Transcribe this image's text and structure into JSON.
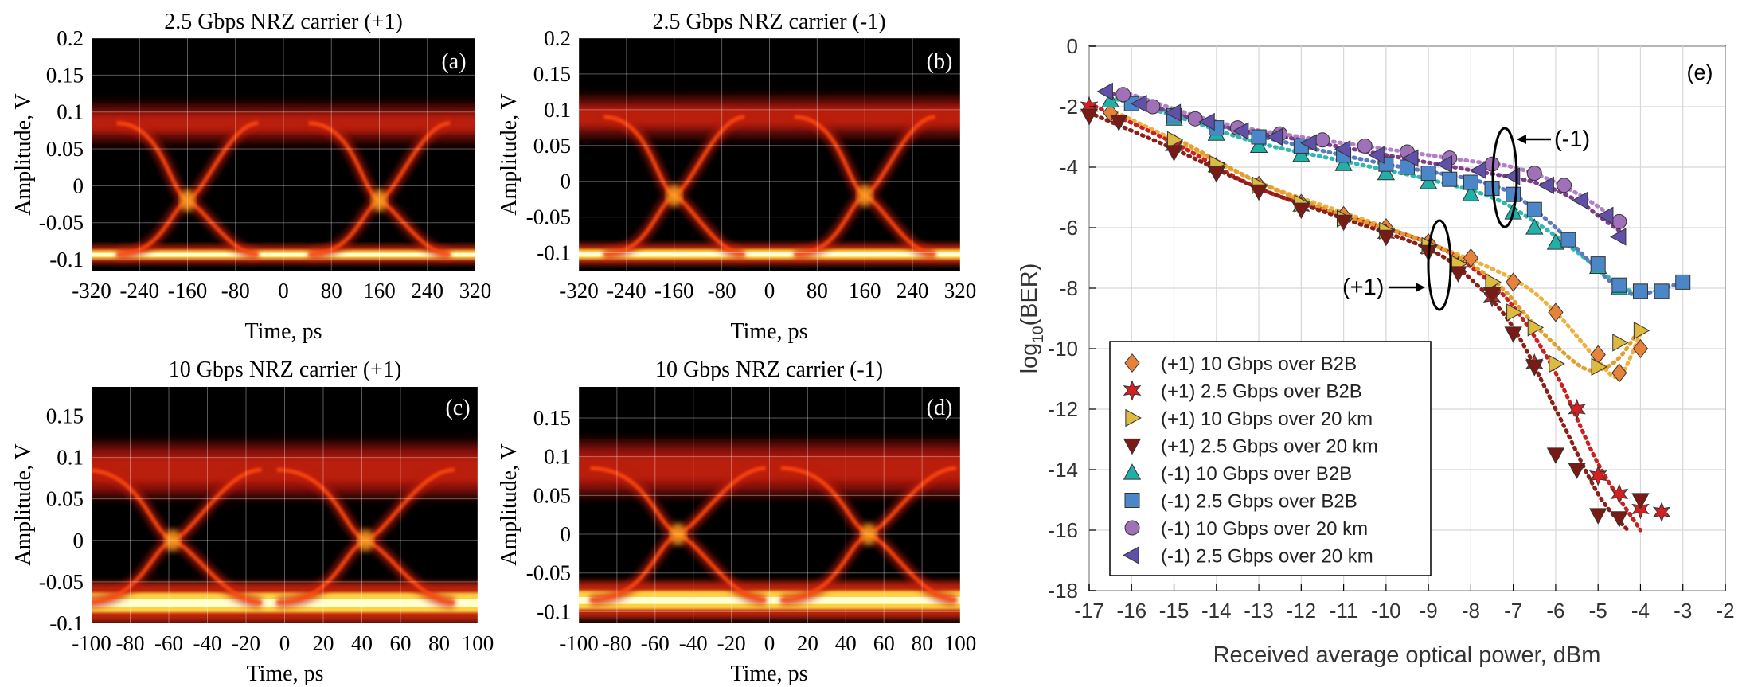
{
  "chart_data": [
    {
      "panel": "(a)",
      "type": "heatmap",
      "title": "2.5 Gbps NRZ carrier (+1)",
      "xlabel": "Time, ps",
      "ylabel": "Amplitude, V",
      "xlim": [
        -320,
        320
      ],
      "ylim": [
        -0.115,
        0.2
      ],
      "xticks": [
        -320,
        -240,
        -160,
        -80,
        0,
        80,
        160,
        240,
        320
      ],
      "xtick_labels": [
        "-320",
        "-240",
        "-160",
        "-80",
        "0",
        "80",
        "160",
        "240",
        "320"
      ],
      "yticks": [
        -0.1,
        -0.05,
        0,
        0.05,
        0.1,
        0.15,
        0.2
      ],
      "ytick_labels": [
        "-0.1",
        "-0.05",
        "0",
        "0.05",
        "0.1",
        "0.15",
        "0.2"
      ],
      "eye": {
        "high": 0.085,
        "low": -0.093,
        "cross_x": [
          -160,
          160
        ],
        "cross_y": -0.02,
        "span": 118,
        "high_w": 0.022,
        "low_w": 0.006
      }
    },
    {
      "panel": "(b)",
      "type": "heatmap",
      "title": "2.5 Gbps NRZ carrier (-1)",
      "xlabel": "Time, ps",
      "ylabel": "Amplitude, V",
      "xlim": [
        -320,
        320
      ],
      "ylim": [
        -0.125,
        0.2
      ],
      "xticks": [
        -320,
        -240,
        -160,
        -80,
        0,
        80,
        160,
        240,
        320
      ],
      "xtick_labels": [
        "-320",
        "-240",
        "-160",
        "-80",
        "0",
        "80",
        "160",
        "240",
        "320"
      ],
      "yticks": [
        -0.1,
        -0.05,
        0,
        0.05,
        0.1,
        0.15,
        0.2
      ],
      "ytick_labels": [
        "-0.1",
        "-0.05",
        "0",
        "0.05",
        "0.1",
        "0.15",
        "0.2"
      ],
      "eye": {
        "high": 0.09,
        "low": -0.102,
        "cross_x": [
          -160,
          160
        ],
        "cross_y": -0.02,
        "span": 118,
        "high_w": 0.025,
        "low_w": 0.007
      }
    },
    {
      "panel": "(c)",
      "type": "heatmap",
      "title": "10 Gbps NRZ carrier (+1)",
      "xlabel": "Time, ps",
      "ylabel": "Amplitude, V",
      "xlim": [
        -100,
        100
      ],
      "ylim": [
        -0.1,
        0.185
      ],
      "xticks": [
        -100,
        -80,
        -60,
        -40,
        -20,
        0,
        20,
        40,
        60,
        80,
        100
      ],
      "xtick_labels": [
        "-100",
        "-80",
        "-60",
        "-40",
        "-20",
        "0",
        "20",
        "40",
        "60",
        "80",
        "100"
      ],
      "yticks": [
        -0.1,
        -0.05,
        0,
        0.05,
        0.1,
        0.15
      ],
      "ytick_labels": [
        "-0.1",
        "-0.05",
        "0",
        "0.05",
        "0.1",
        "0.15"
      ],
      "eye": {
        "high": 0.085,
        "low": -0.075,
        "cross_x": [
          -58,
          42
        ],
        "cross_y": 0.0,
        "span": 46,
        "high_w": 0.03,
        "low_w": 0.012
      }
    },
    {
      "panel": "(d)",
      "type": "heatmap",
      "title": "10 Gbps NRZ carrier (-1)",
      "xlabel": "Time, ps",
      "ylabel": "Amplitude, V",
      "xlim": [
        -100,
        100
      ],
      "ylim": [
        -0.115,
        0.19
      ],
      "xticks": [
        -100,
        -80,
        -60,
        -40,
        -20,
        0,
        20,
        40,
        60,
        80,
        100
      ],
      "xtick_labels": [
        "-100",
        "-80",
        "-60",
        "-40",
        "-20",
        "0",
        "20",
        "40",
        "60",
        "80",
        "100"
      ],
      "yticks": [
        -0.1,
        -0.05,
        0,
        0.05,
        0.1,
        0.15
      ],
      "ytick_labels": [
        "-0.1",
        "-0.05",
        "0",
        "0.05",
        "0.1",
        "0.15"
      ],
      "eye": {
        "high": 0.085,
        "low": -0.085,
        "cross_x": [
          -48,
          52
        ],
        "cross_y": 0.0,
        "span": 46,
        "high_w": 0.032,
        "low_w": 0.012
      }
    },
    {
      "panel": "(e)",
      "type": "scatter",
      "xlabel": "Received average optical power, dBm",
      "ylabel_base": "log",
      "ylabel_sub": "10",
      "ylabel_rest": "(BER)",
      "xlim": [
        -17,
        -2
      ],
      "ylim": [
        -18,
        0
      ],
      "xticks": [
        -17,
        -16,
        -15,
        -14,
        -13,
        -12,
        -11,
        -10,
        -9,
        -8,
        -7,
        -6,
        -5,
        -4,
        -3,
        -2
      ],
      "xtick_labels": [
        "-17",
        "-16",
        "-15",
        "-14",
        "-13",
        "-12",
        "-11",
        "-10",
        "-9",
        "-8",
        "-7",
        "-6",
        "-5",
        "-4",
        "-3",
        "-2"
      ],
      "yticks": [
        0,
        -2,
        -4,
        -6,
        -8,
        -10,
        -12,
        -14,
        -16,
        -18
      ],
      "ytick_labels": [
        "0",
        "-2",
        "-4",
        "-6",
        "-8",
        "-10",
        "-12",
        "-14",
        "-16",
        "-18"
      ],
      "grid": true,
      "legend_position": "bottom-left",
      "annotations": [
        {
          "text": "(-1)",
          "x": -6.0,
          "y": -3.1
        },
        {
          "text": "(+1)",
          "x": -9.8,
          "y": -8.0
        }
      ],
      "series": [
        {
          "name": "(+1) 10 Gbps over B2B",
          "marker": "diamond",
          "color": "#E8823A",
          "x": [
            -16.5,
            -15,
            -14,
            -13,
            -12,
            -11,
            -10,
            -9,
            -8,
            -7,
            -6,
            -5,
            -4.5,
            -4
          ],
          "y": [
            -2.2,
            -3.2,
            -4.0,
            -4.6,
            -5.2,
            -5.6,
            -6.0,
            -6.5,
            -7.0,
            -7.8,
            -8.8,
            -10.2,
            -10.8,
            -10.0
          ],
          "fit": {
            "color": "#F0B040",
            "x": [
              -16.5,
              -15,
              -13,
              -11,
              -9,
              -7,
              -6,
              -5,
              -4.5,
              -4
            ],
            "y": [
              -2.1,
              -3.1,
              -4.5,
              -5.5,
              -6.5,
              -7.7,
              -8.8,
              -10.4,
              -10.9,
              -9.5
            ]
          }
        },
        {
          "name": "(+1) 2.5 Gbps over B2B",
          "marker": "star",
          "color": "#D42020",
          "x": [
            -17,
            -15,
            -14,
            -12,
            -10,
            -9,
            -8.3,
            -7.5,
            -6.5,
            -5.5,
            -5,
            -4.5,
            -4,
            -3.5
          ],
          "y": [
            -2.0,
            -3.3,
            -4.0,
            -5.3,
            -6.2,
            -6.7,
            -7.3,
            -8.3,
            -10.5,
            -12.0,
            -14.2,
            -14.8,
            -15.3,
            -15.4
          ],
          "fit": {
            "color": "#CC2020",
            "x": [
              -17,
              -15,
              -13,
              -11,
              -9,
              -8,
              -7,
              -6,
              -5,
              -4
            ],
            "y": [
              -1.9,
              -3.2,
              -4.7,
              -5.6,
              -6.5,
              -7.3,
              -8.6,
              -10.8,
              -13.8,
              -16.0
            ]
          }
        },
        {
          "name": "(+1) 10 Gbps over 20 km",
          "marker": "triangle-right",
          "color": "#DDBB40",
          "x": [
            -15,
            -14,
            -13,
            -12,
            -11,
            -10,
            -9,
            -8.3,
            -7.5,
            -7,
            -6.5,
            -6,
            -5,
            -4.5,
            -4
          ],
          "y": [
            -3.1,
            -3.9,
            -4.6,
            -5.2,
            -5.7,
            -6.1,
            -6.6,
            -7.2,
            -7.8,
            -8.8,
            -9.3,
            -10.5,
            -10.6,
            -9.8,
            -9.4
          ],
          "fit": {
            "color": "#E0A030",
            "x": [
              -15,
              -13,
              -11,
              -9,
              -7.5,
              -6.5,
              -5.5,
              -5,
              -4.5,
              -4
            ],
            "y": [
              -3.0,
              -4.5,
              -5.6,
              -6.5,
              -7.7,
              -9.2,
              -10.5,
              -10.7,
              -10.3,
              -9.3
            ]
          }
        },
        {
          "name": "(+1) 2.5 Gbps over 20 km",
          "marker": "triangle-down",
          "color": "#7A1A14",
          "x": [
            -17,
            -16.3,
            -15,
            -14,
            -13,
            -12,
            -11,
            -10,
            -9,
            -8.3,
            -7.5,
            -7,
            -6.5,
            -6,
            -5.5,
            -5,
            -4.5,
            -4
          ],
          "y": [
            -2.3,
            -2.5,
            -3.5,
            -4.2,
            -4.8,
            -5.4,
            -5.8,
            -6.3,
            -6.8,
            -7.5,
            -8.2,
            -9.5,
            -10.6,
            -13.5,
            -14.0,
            -15.5,
            -15.6,
            -15.0
          ],
          "fit": {
            "color": "#8A2018",
            "x": [
              -17,
              -15,
              -13,
              -11,
              -9,
              -8,
              -7,
              -6,
              -5,
              -4.3
            ],
            "y": [
              -2.2,
              -3.4,
              -4.7,
              -5.7,
              -6.7,
              -7.7,
              -9.3,
              -12.0,
              -14.8,
              -16.0
            ]
          }
        },
        {
          "name": "(-1) 10 Gbps over B2B",
          "marker": "triangle-up",
          "color": "#20B0A8",
          "x": [
            -16.5,
            -15,
            -14,
            -13,
            -12,
            -11,
            -10,
            -9,
            -8,
            -7,
            -6.5,
            -6,
            -5,
            -4.5
          ],
          "y": [
            -1.8,
            -2.4,
            -2.9,
            -3.3,
            -3.6,
            -3.9,
            -4.2,
            -4.5,
            -4.9,
            -5.5,
            -6.0,
            -6.5,
            -7.3,
            -8.0
          ],
          "fit": {
            "color": "#30B8B0",
            "x": [
              -16.5,
              -15,
              -13,
              -11,
              -9,
              -7.5,
              -6.5,
              -5.5,
              -4.5,
              -4
            ],
            "y": [
              -1.7,
              -2.3,
              -3.2,
              -3.8,
              -4.4,
              -5.0,
              -5.8,
              -6.8,
              -7.9,
              -8.2
            ]
          }
        },
        {
          "name": "(-1) 2.5 Gbps over B2B",
          "marker": "square",
          "color": "#4A86C8",
          "x": [
            -16,
            -15,
            -14,
            -13,
            -12,
            -11,
            -10,
            -9.5,
            -9,
            -8.5,
            -8,
            -7.5,
            -7,
            -6.5,
            -5.7,
            -5,
            -4.5,
            -4,
            -3.5,
            -3
          ],
          "y": [
            -1.9,
            -2.3,
            -2.7,
            -3.0,
            -3.3,
            -3.6,
            -3.9,
            -4.0,
            -4.2,
            -4.4,
            -4.5,
            -4.7,
            -4.9,
            -5.4,
            -6.4,
            -7.2,
            -7.9,
            -8.1,
            -8.1,
            -7.8
          ],
          "fit": {
            "color": "#5A7AC0",
            "x": [
              -16,
              -14,
              -12,
              -10,
              -8,
              -7,
              -6,
              -5,
              -4.5,
              -4,
              -3
            ],
            "y": [
              -1.8,
              -2.6,
              -3.3,
              -3.9,
              -4.4,
              -4.9,
              -6.0,
              -7.4,
              -8.0,
              -8.2,
              -7.8
            ]
          }
        },
        {
          "name": "(-1) 10 Gbps over 20 km",
          "marker": "circle",
          "color": "#A070B8",
          "x": [
            -16.2,
            -15.5,
            -14.5,
            -13.5,
            -12.5,
            -11.5,
            -10.5,
            -9.5,
            -8.5,
            -7.5,
            -6.5,
            -5.8,
            -4.5
          ],
          "y": [
            -1.6,
            -2.0,
            -2.4,
            -2.7,
            -2.9,
            -3.1,
            -3.3,
            -3.5,
            -3.7,
            -3.9,
            -4.2,
            -4.6,
            -5.8
          ],
          "fit": {
            "color": "#B080C8",
            "x": [
              -16.2,
              -14,
              -12,
              -10,
              -8,
              -7,
              -6,
              -5,
              -4.5
            ],
            "y": [
              -1.5,
              -2.5,
              -3.0,
              -3.4,
              -3.8,
              -4.0,
              -4.5,
              -5.3,
              -5.9
            ]
          }
        },
        {
          "name": "(-1) 2.5 Gbps over 20 km",
          "marker": "triangle-left",
          "color": "#6050A8",
          "x": [
            -16.6,
            -15.8,
            -15,
            -14.2,
            -13.4,
            -12.6,
            -11.8,
            -11,
            -10.2,
            -9.4,
            -8.6,
            -7.8,
            -7,
            -6.2,
            -5.4,
            -4.8,
            -4.5
          ],
          "y": [
            -1.5,
            -1.9,
            -2.2,
            -2.5,
            -2.8,
            -3.0,
            -3.2,
            -3.4,
            -3.6,
            -3.7,
            -3.9,
            -4.1,
            -4.3,
            -4.6,
            -5.1,
            -5.6,
            -6.3
          ],
          "fit": {
            "color": "#7F3C8A",
            "x": [
              -16.6,
              -14,
              -12,
              -10,
              -8,
              -6.5,
              -5.5,
              -5,
              -4.5
            ],
            "y": [
              -1.5,
              -2.6,
              -3.1,
              -3.6,
              -4.1,
              -4.5,
              -5.1,
              -5.6,
              -6.1
            ]
          }
        }
      ]
    }
  ]
}
